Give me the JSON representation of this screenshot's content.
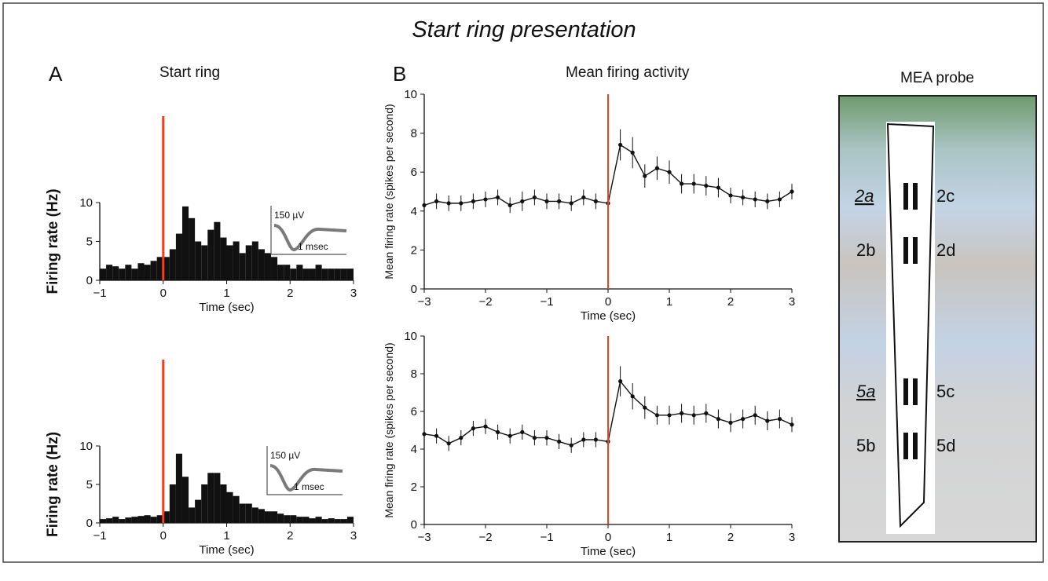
{
  "title": "Start ring presentation",
  "chart_data": [
    {
      "type": "histogram",
      "panel": "A",
      "title": "Start ring",
      "xlabel": "Time (sec)",
      "ylabel": "Firing rate (Hz)",
      "bins": [
        -1,
        -0.9,
        -0.8,
        -0.7,
        -0.6,
        -0.5,
        -0.4,
        -0.3,
        -0.2,
        -0.1,
        0,
        0.1,
        0.2,
        0.3,
        0.4,
        0.5,
        0.6,
        0.7,
        0.8,
        0.9,
        1,
        1.1,
        1.2,
        1.3,
        1.4,
        1.5,
        1.6,
        1.7,
        1.8,
        1.9,
        2,
        2.1,
        2.2,
        2.3,
        2.4,
        2.5,
        2.6,
        2.7,
        2.8,
        2.9,
        3
      ],
      "values": [
        1.5,
        2,
        1.8,
        1.5,
        2,
        1.5,
        2.2,
        2,
        2.5,
        3,
        3,
        4,
        6,
        9.5,
        8,
        5,
        4.5,
        6.5,
        7.5,
        5.5,
        4.5,
        5,
        3.5,
        4.5,
        5,
        4,
        3.5,
        3,
        2,
        2,
        1.5,
        2,
        1.5,
        1.5,
        2,
        1.5,
        1.5,
        1.5,
        1.5,
        1.5
      ],
      "color": "#111111",
      "xlim": [
        -1,
        3
      ],
      "xticks": [
        {
          "value": -1,
          "label": "−1"
        },
        0,
        1,
        2,
        3
      ],
      "ylim": [
        0,
        10
      ],
      "yticks": [
        0,
        5,
        10
      ],
      "marker_x": 0,
      "marker_color": "#e8432a",
      "inset_labels": [
        "150 µV",
        "1 msec"
      ]
    },
    {
      "type": "histogram",
      "xlabel": "Time (sec)",
      "ylabel": "Firing rate (Hz)",
      "bins": [
        -1,
        -0.9,
        -0.8,
        -0.7,
        -0.6,
        -0.5,
        -0.4,
        -0.3,
        -0.2,
        -0.1,
        0,
        0.1,
        0.2,
        0.3,
        0.4,
        0.5,
        0.6,
        0.7,
        0.8,
        0.9,
        1,
        1.1,
        1.2,
        1.3,
        1.4,
        1.5,
        1.6,
        1.7,
        1.8,
        1.9,
        2,
        2.1,
        2.2,
        2.3,
        2.4,
        2.5,
        2.6,
        2.7,
        2.8,
        2.9,
        3
      ],
      "values": [
        0.5,
        0.6,
        0.8,
        0.5,
        0.7,
        0.8,
        0.9,
        1,
        0.8,
        1,
        1.5,
        5,
        9,
        6,
        2,
        3,
        5,
        6.5,
        6.5,
        5,
        4,
        3.5,
        2.5,
        2.5,
        2,
        1.8,
        1.5,
        1.5,
        1.2,
        1,
        1,
        0.8,
        0.8,
        0.6,
        0.8,
        0.5,
        0.6,
        0.5,
        0.5,
        0.8
      ],
      "color": "#111111",
      "xlim": [
        -1,
        3
      ],
      "xticks": [
        {
          "value": -1,
          "label": "−1"
        },
        0,
        1,
        2,
        3
      ],
      "ylim": [
        0,
        10
      ],
      "yticks": [
        0,
        5,
        10
      ],
      "marker_x": 0,
      "marker_color": "#e8432a",
      "inset_labels": [
        "150 µV",
        "1 msec"
      ]
    },
    {
      "type": "line",
      "panel": "B",
      "title": "Mean firing activity",
      "xlabel": "Time (sec)",
      "ylabel": "Mean firing rate (spikes per second)",
      "x": [
        -3,
        -2.8,
        -2.6,
        -2.4,
        -2.2,
        -2,
        -1.8,
        -1.6,
        -1.4,
        -1.2,
        -1,
        -0.8,
        -0.6,
        -0.4,
        -0.2,
        0,
        0.2,
        0.4,
        0.6,
        0.8,
        1,
        1.2,
        1.4,
        1.6,
        1.8,
        2,
        2.2,
        2.4,
        2.6,
        2.8,
        3
      ],
      "values": [
        4.3,
        4.5,
        4.4,
        4.4,
        4.5,
        4.6,
        4.7,
        4.3,
        4.5,
        4.7,
        4.5,
        4.5,
        4.4,
        4.7,
        4.5,
        4.4,
        7.4,
        7,
        5.8,
        6.2,
        6,
        5.4,
        5.4,
        5.3,
        5.2,
        4.8,
        4.7,
        4.6,
        4.5,
        4.6,
        5
      ],
      "errors": [
        0.4,
        0.4,
        0.4,
        0.4,
        0.4,
        0.4,
        0.4,
        0.4,
        0.5,
        0.4,
        0.4,
        0.4,
        0.4,
        0.4,
        0.4,
        0.4,
        0.8,
        0.8,
        0.6,
        0.6,
        0.6,
        0.5,
        0.5,
        0.5,
        0.5,
        0.4,
        0.4,
        0.4,
        0.4,
        0.4,
        0.4
      ],
      "color": "#111111",
      "xlim": [
        -3,
        3
      ],
      "xticks": [
        {
          "value": -3,
          "label": "−3"
        },
        {
          "value": -2,
          "label": "−2"
        },
        {
          "value": -1,
          "label": "−1"
        },
        0,
        1,
        2,
        3
      ],
      "ylim": [
        0,
        10
      ],
      "yticks": [
        0,
        2,
        4,
        6,
        8,
        10
      ],
      "marker_x": 0,
      "marker_color": "#e8432a"
    },
    {
      "type": "line",
      "xlabel": "Time (sec)",
      "ylabel": "Mean firing rate (spikes per second)",
      "x": [
        -3,
        -2.8,
        -2.6,
        -2.4,
        -2.2,
        -2,
        -1.8,
        -1.6,
        -1.4,
        -1.2,
        -1,
        -0.8,
        -0.6,
        -0.4,
        -0.2,
        0,
        0.2,
        0.4,
        0.6,
        0.8,
        1,
        1.2,
        1.4,
        1.6,
        1.8,
        2,
        2.2,
        2.4,
        2.6,
        2.8,
        3
      ],
      "values": [
        4.8,
        4.7,
        4.3,
        4.6,
        5.1,
        5.2,
        4.9,
        4.7,
        4.9,
        4.6,
        4.6,
        4.4,
        4.2,
        4.5,
        4.5,
        4.4,
        7.6,
        6.8,
        6.2,
        5.8,
        5.8,
        5.9,
        5.8,
        5.9,
        5.6,
        5.4,
        5.6,
        5.8,
        5.5,
        5.6,
        5.3
      ],
      "errors": [
        0.4,
        0.4,
        0.4,
        0.4,
        0.4,
        0.4,
        0.4,
        0.4,
        0.4,
        0.4,
        0.4,
        0.4,
        0.4,
        0.4,
        0.4,
        0.4,
        0.8,
        0.7,
        0.6,
        0.5,
        0.5,
        0.5,
        0.5,
        0.5,
        0.5,
        0.5,
        0.5,
        0.5,
        0.5,
        0.5,
        0.4
      ],
      "color": "#111111",
      "xlim": [
        -3,
        3
      ],
      "xticks": [
        {
          "value": -3,
          "label": "−3"
        },
        {
          "value": -2,
          "label": "−2"
        },
        {
          "value": -1,
          "label": "−1"
        },
        0,
        1,
        2,
        3
      ],
      "ylim": [
        0,
        10
      ],
      "yticks": [
        0,
        2,
        4,
        6,
        8,
        10
      ],
      "marker_x": 0,
      "marker_color": "#e8432a"
    }
  ],
  "probe": {
    "title": "MEA probe",
    "sites": [
      "2a",
      "2c",
      "2b",
      "2d",
      "5a",
      "5c",
      "5b",
      "5d"
    ]
  }
}
